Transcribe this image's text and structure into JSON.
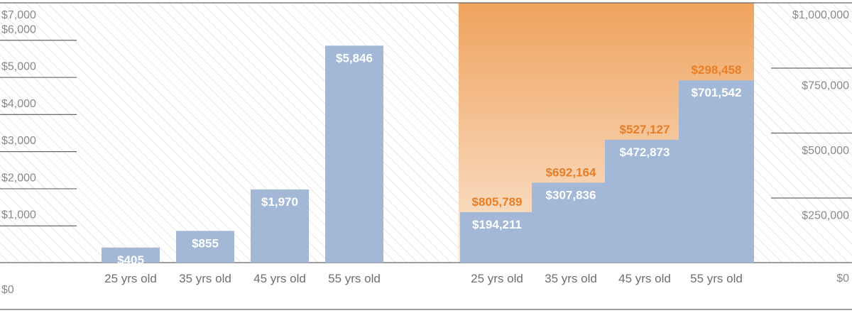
{
  "colors": {
    "bar": "#a2b8d6",
    "accent_orange": "#e87f27",
    "gradient_top": "#efa35e",
    "gradient_bottom": "#fbe6d3",
    "gridline": "#666666",
    "hatch": "#dcdcdc",
    "axis_text": "#8a8a8a"
  },
  "chart_data": [
    {
      "type": "bar",
      "categories": [
        "25 yrs old",
        "35 yrs old",
        "45 yrs old",
        "55 yrs old"
      ],
      "values": [
        405,
        855,
        1970,
        5846
      ],
      "value_labels": [
        "$405",
        "$855",
        "$1,970",
        "$5,846"
      ],
      "ylim": [
        0,
        7000
      ],
      "yticks": [
        0,
        1000,
        2000,
        3000,
        4000,
        5000,
        6000,
        7000
      ],
      "ytick_labels": [
        "$0",
        "$1,000",
        "$2,000",
        "$3,000",
        "$4,000",
        "$5,000",
        "$6,000",
        "$7,000"
      ],
      "axis_side": "left",
      "grid": true
    },
    {
      "type": "bar",
      "stacked": true,
      "categories": [
        "25 yrs old",
        "35 yrs old",
        "45 yrs old",
        "55 yrs old"
      ],
      "series": [
        {
          "values": [
            194211,
            307836,
            472873,
            701542
          ],
          "labels": [
            "$194,211",
            "$307,836",
            "$472,873",
            "$701,542"
          ]
        },
        {
          "values": [
            805789,
            692164,
            527127,
            298458
          ],
          "labels": [
            "$805,789",
            "$692,164",
            "$527,127",
            "$298,458"
          ]
        }
      ],
      "ylim": [
        0,
        1000000
      ],
      "yticks": [
        0,
        250000,
        500000,
        750000,
        1000000
      ],
      "ytick_labels": [
        "$0",
        "$250,000",
        "$500,000",
        "$750,000",
        "$1,000,000"
      ],
      "axis_side": "right",
      "grid": true
    }
  ]
}
